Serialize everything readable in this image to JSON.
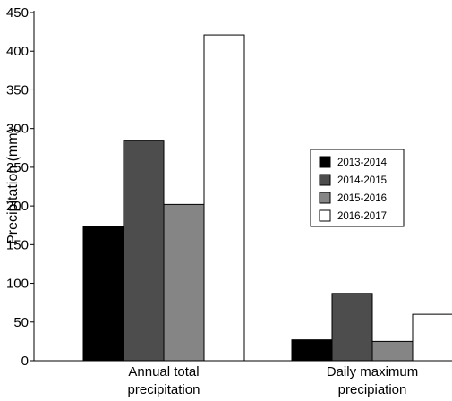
{
  "chart_data": {
    "type": "bar",
    "categories": [
      [
        "Annual total",
        "precipitation"
      ],
      [
        "Daily maximum",
        "precipiation"
      ]
    ],
    "series": [
      {
        "name": "2013-2014",
        "color": "#000000",
        "values": [
          174,
          27
        ]
      },
      {
        "name": "2014-2015",
        "color": "#4d4d4d",
        "values": [
          285,
          87
        ]
      },
      {
        "name": "2015-2016",
        "color": "#858585",
        "values": [
          202,
          25
        ]
      },
      {
        "name": "2016-2017",
        "color": "#ffffff",
        "values": [
          421,
          60
        ]
      }
    ],
    "ylabel": "Precipitation (mm)",
    "ylim": [
      0,
      450
    ],
    "yticks": [
      0,
      50,
      100,
      150,
      200,
      250,
      300,
      350,
      400,
      450
    ],
    "grid": false,
    "legend_position": "right-middle"
  }
}
